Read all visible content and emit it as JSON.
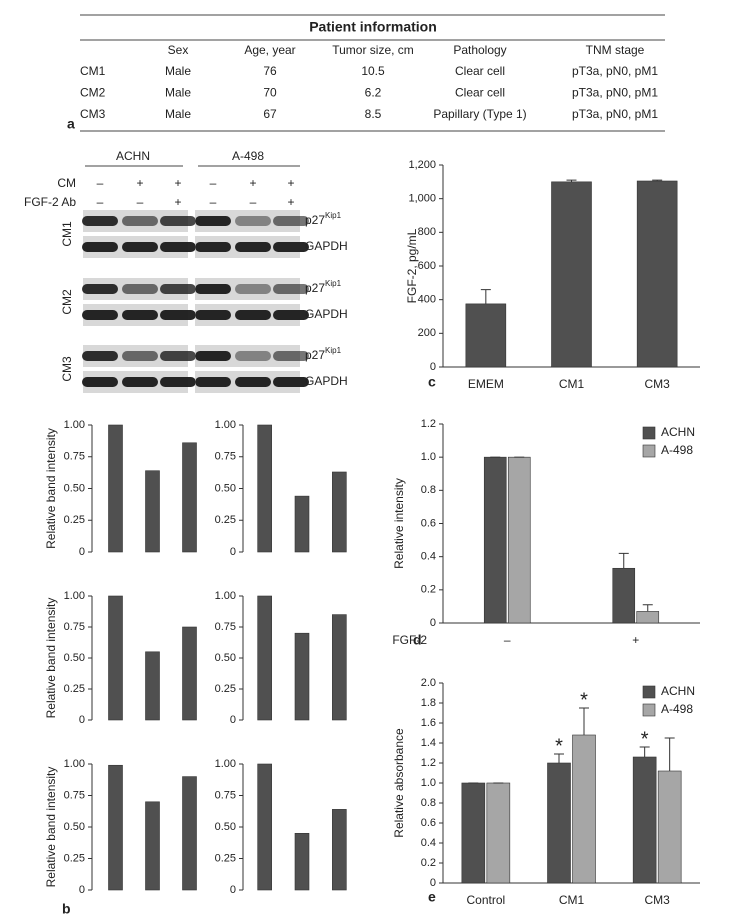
{
  "table": {
    "title": "Patient information",
    "panel_label": "a",
    "columns": [
      "Sex",
      "Age, year",
      "Tumor size, cm",
      "Pathology",
      "TNM stage"
    ],
    "rows": [
      [
        "CM1",
        "Male",
        76,
        10.5,
        "Clear cell",
        "pT3a, pN0, pM1"
      ],
      [
        "CM2",
        "Male",
        70,
        6.2,
        "Clear cell",
        "pT3a, pN0, pM1"
      ],
      [
        "CM3",
        "Male",
        67,
        8.5,
        "Papillary (Type 1)",
        "pT3a, pN0, pM1"
      ]
    ]
  },
  "blot": {
    "panel_label": "b",
    "cell_lines": [
      "ACHN",
      "A-498"
    ],
    "conditions": [
      {
        "name": "CM",
        "signs": [
          "–",
          "+",
          "+"
        ]
      },
      {
        "name": "FGF-2 Ab",
        "signs": [
          "–",
          "–",
          "+"
        ]
      }
    ],
    "groups": [
      "CM1",
      "CM2",
      "CM3"
    ],
    "proteins": [
      {
        "name": "p27",
        "superscript": "Kip1"
      },
      {
        "name": "GAPDH"
      }
    ]
  },
  "chart_data": [
    {
      "type": "bar",
      "ylabel": "Relative band intensity",
      "values": [
        1.0,
        0.64,
        0.86
      ],
      "color": "#505050",
      "ylim": [
        0,
        1
      ],
      "yticks": [
        0,
        0.25,
        {
          "value": 0.5,
          "label": "0.50"
        },
        0.75,
        {
          "value": 1,
          "label": "1.00"
        }
      ]
    },
    {
      "type": "bar",
      "values": [
        1.0,
        0.44,
        0.63
      ],
      "color": "#505050",
      "ylim": [
        0,
        1
      ],
      "yticks": [
        0,
        0.25,
        {
          "value": 0.5,
          "label": "0.50"
        },
        0.75,
        {
          "value": 1,
          "label": "1.00"
        }
      ]
    },
    {
      "type": "bar",
      "ylabel": "Relative band intensity",
      "values": [
        1.0,
        0.55,
        0.75
      ],
      "color": "#505050",
      "ylim": [
        0,
        1
      ],
      "yticks": [
        0,
        0.25,
        {
          "value": 0.5,
          "label": "0.50"
        },
        0.75,
        {
          "value": 1,
          "label": "1.00"
        }
      ]
    },
    {
      "type": "bar",
      "values": [
        1.0,
        0.7,
        0.85
      ],
      "color": "#505050",
      "ylim": [
        0,
        1
      ],
      "yticks": [
        0,
        0.25,
        {
          "value": 0.5,
          "label": "0.50"
        },
        0.75,
        {
          "value": 1,
          "label": "1.00"
        }
      ]
    },
    {
      "type": "bar",
      "ylabel": "Relative band intensity",
      "values": [
        0.99,
        0.7,
        0.9
      ],
      "color": "#505050",
      "ylim": [
        0,
        1
      ],
      "yticks": [
        0,
        0.25,
        {
          "value": 0.5,
          "label": "0.50"
        },
        0.75,
        {
          "value": 1,
          "label": "1.00"
        }
      ]
    },
    {
      "type": "bar",
      "values": [
        1.0,
        0.45,
        0.64
      ],
      "color": "#505050",
      "ylim": [
        0,
        1
      ],
      "yticks": [
        0,
        0.25,
        {
          "value": 0.5,
          "label": "0.50"
        },
        0.75,
        {
          "value": 1,
          "label": "1.00"
        }
      ]
    },
    {
      "type": "bar",
      "panel_label": "c",
      "ylabel": "FGF-2, pg/mL",
      "categories": [
        "EMEM",
        "CM1",
        "CM3"
      ],
      "values": [
        375,
        1100,
        1105
      ],
      "errors": [
        85,
        10,
        5
      ],
      "color": "#505050",
      "ylim": [
        0,
        1200
      ],
      "yticks": [
        0,
        200,
        400,
        600,
        800,
        {
          "value": 1000,
          "label": "1,000"
        },
        {
          "value": 1200,
          "label": "1,200"
        }
      ]
    },
    {
      "type": "bar",
      "panel_label": "d",
      "ylabel": "Relative intensity",
      "xlabel": "FGF-2",
      "categories": [
        "–",
        "+"
      ],
      "series": [
        {
          "name": "ACHN",
          "color": "#505050",
          "values": [
            1.0,
            0.33
          ],
          "errors": [
            0,
            0.09
          ]
        },
        {
          "name": "A-498",
          "color": "#a6a6a6",
          "values": [
            1.0,
            0.07
          ],
          "errors": [
            0,
            0.04
          ]
        }
      ],
      "legend": "upper right",
      "ylim": [
        0,
        1.2
      ],
      "yticks": [
        0,
        0.2,
        0.4,
        0.6,
        0.8,
        {
          "value": 1,
          "label": "1.0"
        },
        1.2
      ]
    },
    {
      "type": "bar",
      "panel_label": "e",
      "ylabel": "Relative absorbance",
      "categories": [
        "Control",
        "CM1",
        "CM3"
      ],
      "series": [
        {
          "name": "ACHN",
          "color": "#505050",
          "values": [
            1.0,
            1.2,
            1.26
          ],
          "errors": [
            0,
            0.09,
            0.1
          ],
          "annotations": [
            null,
            "*",
            "*"
          ]
        },
        {
          "name": "A-498",
          "color": "#a6a6a6",
          "values": [
            1.0,
            1.48,
            1.12
          ],
          "errors": [
            0,
            0.27,
            0.33
          ],
          "annotations": [
            null,
            "*",
            null
          ]
        }
      ],
      "legend": "upper right",
      "ylim": [
        0,
        2
      ],
      "yticks": [
        0,
        0.2,
        0.4,
        0.6,
        0.8,
        {
          "value": 1,
          "label": "1.0"
        },
        1.2,
        1.4,
        1.6,
        1.8,
        {
          "value": 2,
          "label": "2.0"
        }
      ]
    }
  ]
}
